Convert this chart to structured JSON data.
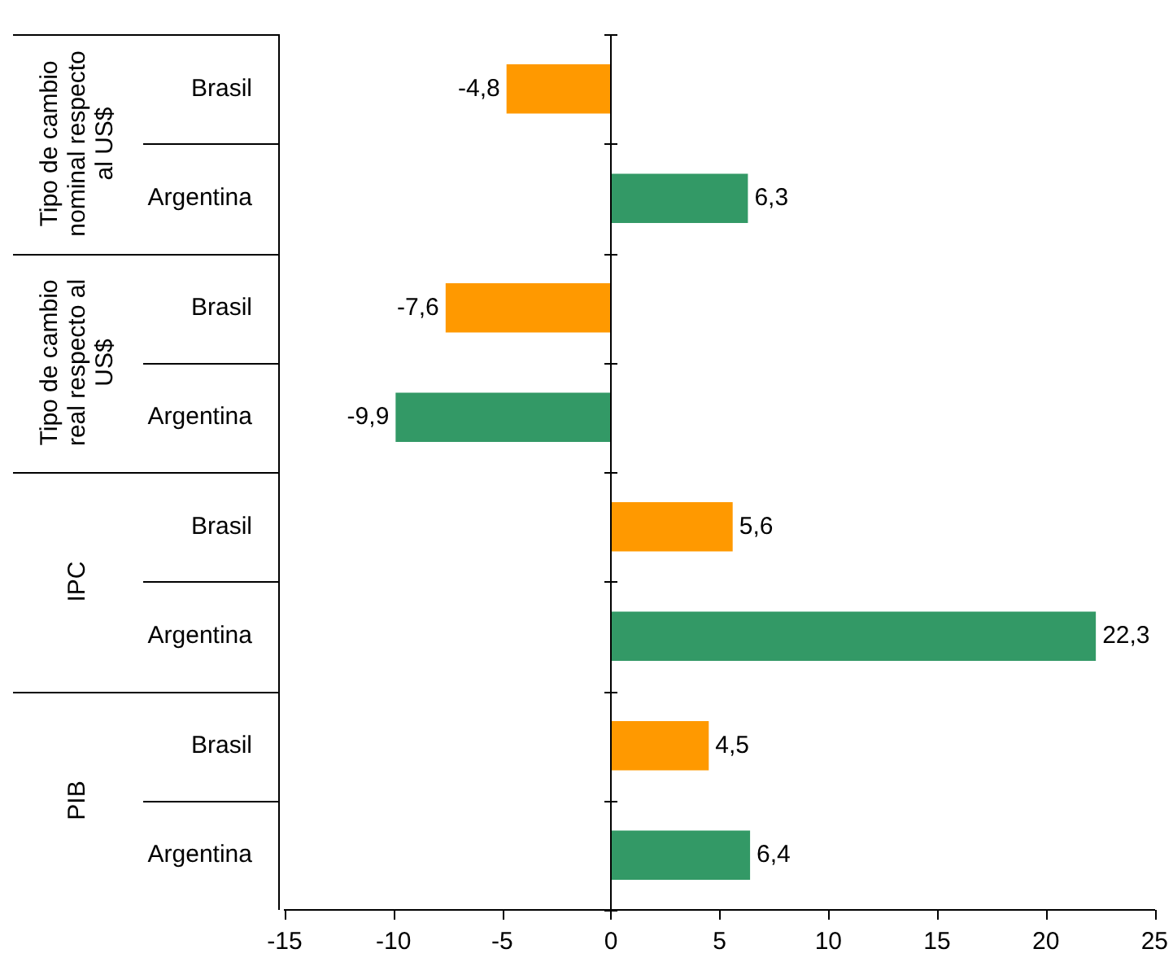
{
  "chart_data": {
    "type": "bar",
    "orientation": "horizontal",
    "categories": [
      "Brasil",
      "Argentina",
      "Brasil",
      "Argentina",
      "Brasil",
      "Argentina",
      "Brasil",
      "Argentina"
    ],
    "values": [
      -4.8,
      6.3,
      -7.6,
      -9.9,
      5.6,
      22.3,
      4.5,
      6.4
    ],
    "colors": [
      "#ff9900",
      "#339966",
      "#ff9900",
      "#339966",
      "#ff9900",
      "#339966",
      "#ff9900",
      "#339966"
    ],
    "xlim": [
      -15,
      25
    ],
    "xticks": [
      -15,
      -10,
      -5,
      0,
      5,
      10,
      15,
      20,
      25
    ],
    "value_labels": [
      "-4,8",
      "6,3",
      "-7,6",
      "-9,9",
      "5,6",
      "22,3",
      "4,5",
      "6,4"
    ],
    "grid": false,
    "ref_lines": [
      {
        "axis": "x",
        "value": 0
      }
    ],
    "legend": false,
    "annotations": [
      "Tipo de cambio nominal respecto al US$",
      "Tipo de cambio real respecto al US$",
      "IPC",
      "PIB"
    ]
  }
}
